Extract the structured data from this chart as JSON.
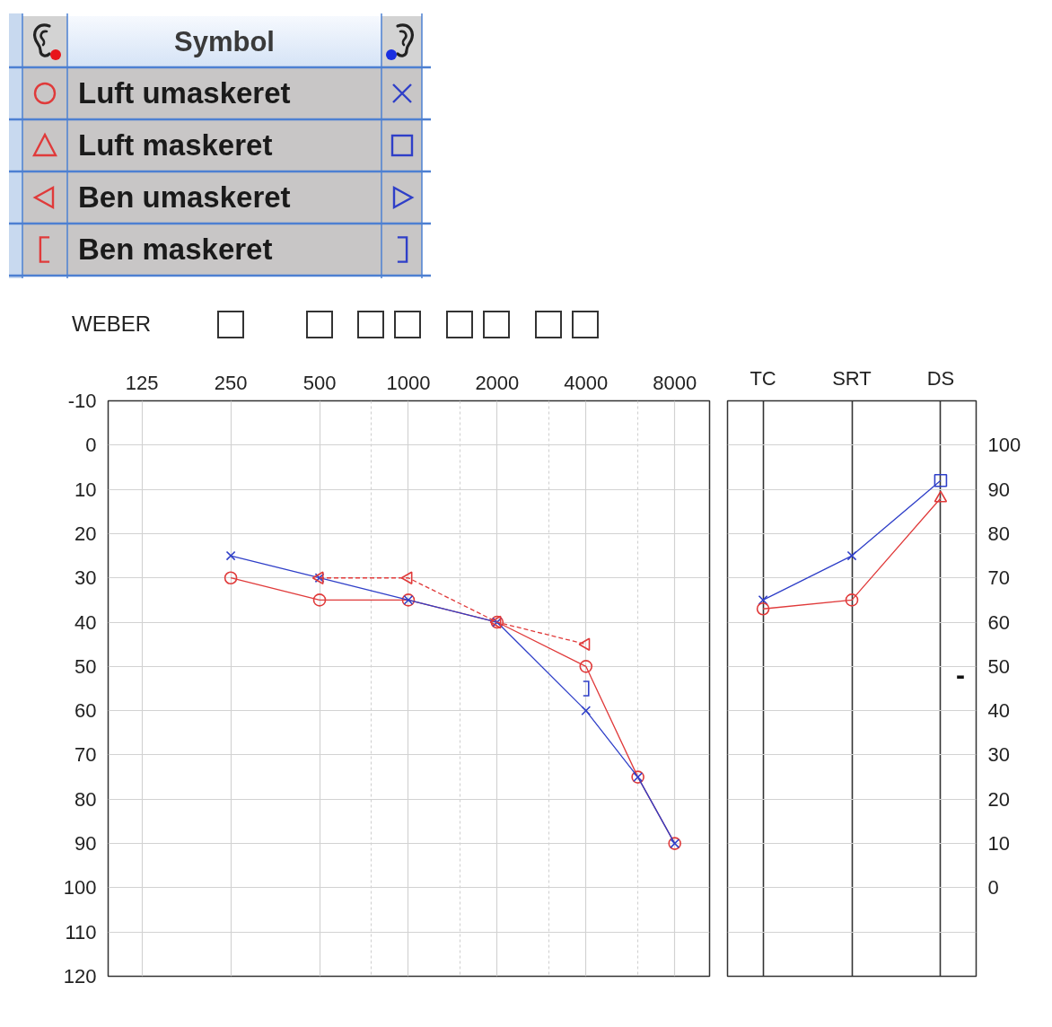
{
  "chart_data": [
    {
      "type": "line",
      "legend": "top left",
      "legend_title": "Symbol",
      "log": "x",
      "xlim": [
        96,
        10500
      ],
      "xticks": [
        125,
        250,
        500,
        {
          "value": 750,
          "label": null
        },
        1000,
        {
          "value": 1500,
          "label": null
        },
        2000,
        {
          "value": 3000,
          "label": null
        },
        4000,
        {
          "value": 6000,
          "label": null
        },
        8000
      ],
      "ylim": [
        120,
        -10
      ],
      "yticks": [
        -10,
        0,
        10,
        20,
        30,
        40,
        50,
        60,
        70,
        80,
        90,
        100,
        110,
        120
      ],
      "grid": true,
      "annotations": [
        "WEBER"
      ],
      "series": [
        {
          "name": "Luft umaskeret",
          "color": "#e03a3a",
          "marker": "circle",
          "line_style": "solid",
          "x": [
            250,
            500,
            1000,
            2000,
            4000,
            6000,
            8000
          ],
          "values": [
            30,
            35,
            35,
            40,
            50,
            75,
            90
          ]
        },
        {
          "color": "#2f3fc8",
          "marker": "cross",
          "line_style": "solid",
          "x": [
            250,
            500,
            1000,
            2000,
            4000,
            6000,
            8000
          ],
          "values": [
            25,
            30,
            35,
            40,
            60,
            75,
            90
          ]
        },
        {
          "name": "Luft maskeret",
          "type": "scatter",
          "color": "#e03a3a",
          "marker": "triangle"
        },
        {
          "type": "scatter",
          "color": "#2f3fc8",
          "marker": "square"
        },
        {
          "name": "Ben umaskeret",
          "color": "#e03a3a",
          "marker": "triangle",
          "line_style": "dashed",
          "x": [
            500,
            1000,
            2000,
            4000
          ],
          "values": [
            30,
            30,
            40,
            45
          ]
        },
        {
          "type": "scatter",
          "color": "#2f3fc8",
          "marker": "triangle"
        },
        {
          "name": "Ben maskeret",
          "type": "scatter",
          "color": "#e03a3a"
        },
        {
          "type": "scatter",
          "color": "#2f3fc8",
          "x": [
            4000
          ],
          "values": [
            55
          ]
        }
      ]
    },
    {
      "type": "line",
      "categories": [
        "TC",
        "SRT",
        "DS"
      ],
      "ylim": [
        -20,
        110
      ],
      "yticks": [
        {
          "value": -10,
          "label": null
        },
        0,
        10,
        20,
        30,
        40,
        50,
        60,
        70,
        80,
        90,
        100
      ],
      "grid": true,
      "annotations": [
        "-"
      ],
      "series": [
        {
          "color": "#2f3fc8",
          "marker": "none",
          "line_style": "solid",
          "values": [
            65,
            75,
            92
          ]
        },
        {
          "type": "scatter",
          "color": "#2f3fc8",
          "marker": "cross",
          "values": [
            65,
            75,
            null
          ]
        },
        {
          "type": "scatter",
          "color": "#2f3fc8",
          "marker": "square",
          "values": [
            null,
            null,
            92
          ]
        },
        {
          "color": "#e03a3a",
          "marker": "none",
          "line_style": "solid",
          "values": [
            63,
            65,
            88
          ]
        },
        {
          "type": "scatter",
          "color": "#e03a3a",
          "marker": "circle",
          "values": [
            63,
            65,
            null
          ]
        },
        {
          "type": "scatter",
          "color": "#e03a3a",
          "marker": "triangle",
          "values": [
            null,
            null,
            88
          ]
        }
      ]
    }
  ]
}
